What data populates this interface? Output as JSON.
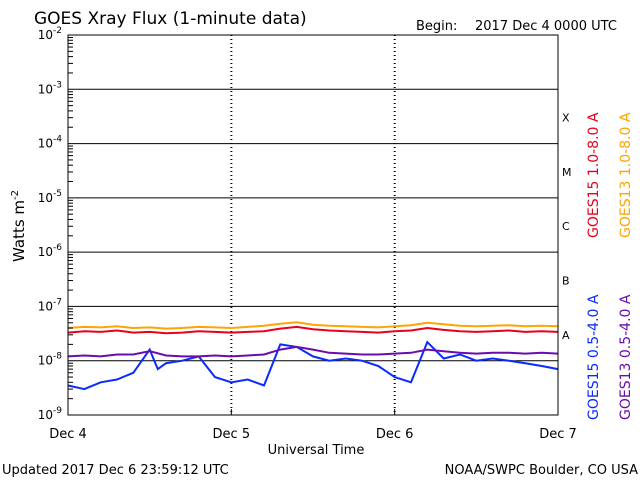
{
  "header": {
    "title": "GOES Xray Flux (1-minute data)",
    "begin_label": "Begin:",
    "begin_value": "2017 Dec 4 0000 UTC"
  },
  "footer": {
    "updated": "Updated 2017 Dec  6 23:59:12 UTC",
    "credit": "NOAA/SWPC Boulder, CO USA"
  },
  "chart_data": {
    "type": "line",
    "xlabel": "Universal Time",
    "ylabel_base": "Watts m",
    "ylabel_exp": "-2",
    "y_scale": "log",
    "ylim": [
      1e-09,
      0.01
    ],
    "xlim_days": [
      "Dec 4",
      "Dec 7"
    ],
    "x_ticks": [
      "Dec 4",
      "Dec 5",
      "Dec 6",
      "Dec 7"
    ],
    "y_ticks": [
      {
        "base": "10",
        "exp": "-2",
        "value": 0.01
      },
      {
        "base": "10",
        "exp": "-3",
        "value": 0.001
      },
      {
        "base": "10",
        "exp": "-4",
        "value": 0.0001
      },
      {
        "base": "10",
        "exp": "-5",
        "value": 1e-05
      },
      {
        "base": "10",
        "exp": "-6",
        "value": 1e-06
      },
      {
        "base": "10",
        "exp": "-7",
        "value": 1e-07
      },
      {
        "base": "10",
        "exp": "-8",
        "value": 1e-08
      },
      {
        "base": "10",
        "exp": "-9",
        "value": 1e-09
      }
    ],
    "flare_classes": [
      {
        "label": "X",
        "value": 0.0003
      },
      {
        "label": "M",
        "value": 3e-05
      },
      {
        "label": "C",
        "value": 3e-06
      },
      {
        "label": "B",
        "value": 3e-07
      },
      {
        "label": "A",
        "value": 3e-08
      }
    ],
    "grid": "horizontal lines at each decade; dotted vertical lines at each day",
    "series": [
      {
        "name": "GOES15 1.0-8.0 A",
        "color": "#e8001c",
        "x": [
          0,
          0.1,
          0.2,
          0.3,
          0.4,
          0.5,
          0.6,
          0.7,
          0.8,
          0.9,
          1.0,
          1.1,
          1.2,
          1.3,
          1.4,
          1.5,
          1.6,
          1.7,
          1.8,
          1.9,
          2.0,
          2.1,
          2.2,
          2.3,
          2.4,
          2.5,
          2.6,
          2.7,
          2.8,
          2.9,
          3.0
        ],
        "values": [
          3.3e-08,
          3.5e-08,
          3.4e-08,
          3.6e-08,
          3.3e-08,
          3.4e-08,
          3.2e-08,
          3.3e-08,
          3.5e-08,
          3.4e-08,
          3.3e-08,
          3.4e-08,
          3.5e-08,
          3.9e-08,
          4.2e-08,
          3.8e-08,
          3.6e-08,
          3.5e-08,
          3.4e-08,
          3.3e-08,
          3.5e-08,
          3.6e-08,
          4e-08,
          3.7e-08,
          3.5e-08,
          3.4e-08,
          3.5e-08,
          3.6e-08,
          3.4e-08,
          3.5e-08,
          3.4e-08
        ]
      },
      {
        "name": "GOES13 1.0-8.0 A",
        "color": "#ffa500",
        "x": [
          0,
          0.1,
          0.2,
          0.3,
          0.4,
          0.5,
          0.6,
          0.7,
          0.8,
          0.9,
          1.0,
          1.1,
          1.2,
          1.3,
          1.4,
          1.5,
          1.6,
          1.7,
          1.8,
          1.9,
          2.0,
          2.1,
          2.2,
          2.3,
          2.4,
          2.5,
          2.6,
          2.7,
          2.8,
          2.9,
          3.0
        ],
        "values": [
          4e-08,
          4.2e-08,
          4.1e-08,
          4.3e-08,
          4e-08,
          4.1e-08,
          3.9e-08,
          4e-08,
          4.2e-08,
          4.1e-08,
          4e-08,
          4.2e-08,
          4.4e-08,
          4.8e-08,
          5.1e-08,
          4.6e-08,
          4.4e-08,
          4.3e-08,
          4.2e-08,
          4.1e-08,
          4.3e-08,
          4.5e-08,
          5e-08,
          4.7e-08,
          4.4e-08,
          4.3e-08,
          4.4e-08,
          4.5e-08,
          4.3e-08,
          4.4e-08,
          4.3e-08
        ]
      },
      {
        "name": "GOES15 0.5-4.0 A",
        "color": "#0a2bff",
        "x": [
          0,
          0.1,
          0.2,
          0.3,
          0.4,
          0.5,
          0.55,
          0.6,
          0.7,
          0.8,
          0.9,
          1.0,
          1.1,
          1.2,
          1.3,
          1.4,
          1.5,
          1.6,
          1.7,
          1.8,
          1.9,
          2.0,
          2.1,
          2.2,
          2.3,
          2.4,
          2.5,
          2.6,
          2.7,
          2.8,
          2.9,
          3.0
        ],
        "values": [
          3.5e-09,
          3e-09,
          4e-09,
          4.5e-09,
          6e-09,
          1.6e-08,
          7e-09,
          9e-09,
          1e-08,
          1.2e-08,
          5e-09,
          4e-09,
          4.5e-09,
          3.5e-09,
          2e-08,
          1.8e-08,
          1.2e-08,
          1e-08,
          1.1e-08,
          1e-08,
          8e-09,
          5e-09,
          4e-09,
          2.2e-08,
          1.1e-08,
          1.3e-08,
          1e-08,
          1.1e-08,
          1e-08,
          9e-09,
          8e-09,
          7e-09
        ]
      },
      {
        "name": "GOES13 0.5-4.0 A",
        "color": "#6a0dad",
        "x": [
          0,
          0.1,
          0.2,
          0.3,
          0.4,
          0.5,
          0.6,
          0.7,
          0.8,
          0.9,
          1.0,
          1.1,
          1.2,
          1.3,
          1.4,
          1.5,
          1.6,
          1.7,
          1.8,
          1.9,
          2.0,
          2.1,
          2.2,
          2.3,
          2.4,
          2.5,
          2.6,
          2.7,
          2.8,
          2.9,
          3.0
        ],
        "values": [
          1.2e-08,
          1.25e-08,
          1.2e-08,
          1.3e-08,
          1.3e-08,
          1.5e-08,
          1.25e-08,
          1.2e-08,
          1.2e-08,
          1.25e-08,
          1.2e-08,
          1.25e-08,
          1.3e-08,
          1.6e-08,
          1.8e-08,
          1.6e-08,
          1.4e-08,
          1.35e-08,
          1.3e-08,
          1.3e-08,
          1.35e-08,
          1.4e-08,
          1.6e-08,
          1.5e-08,
          1.4e-08,
          1.35e-08,
          1.4e-08,
          1.4e-08,
          1.35e-08,
          1.4e-08,
          1.35e-08
        ]
      }
    ]
  }
}
